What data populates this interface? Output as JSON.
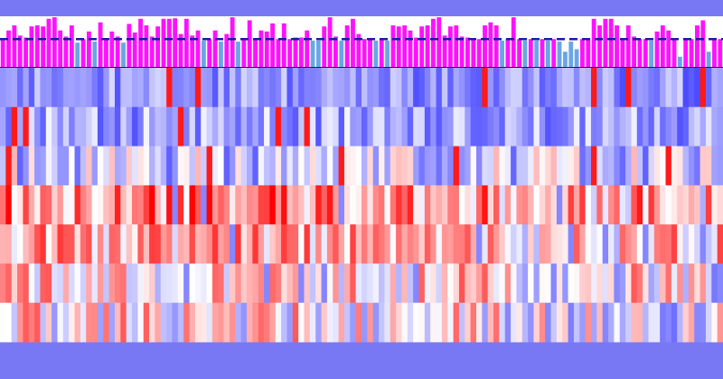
{
  "colors": {
    "background": "#7878f5",
    "panel": "#ffffff",
    "bar_above": "#ff11ff",
    "bar_below": "#6aa6e6",
    "threshold_line": "#1a1aaa",
    "heat_low": "#3636ff",
    "heat_mid": "#ffffff",
    "heat_high": "#ff0000",
    "divider": "#222222"
  },
  "chart_data": [
    {
      "type": "bar",
      "threshold": 0.55,
      "ylim": [
        0,
        1
      ],
      "values": [
        0.55,
        0.72,
        0.82,
        0.62,
        0.58,
        0.8,
        0.82,
        0.8,
        0.95,
        0.98,
        0.72,
        0.6,
        0.82,
        0.48,
        0.55,
        0.7,
        0.5,
        0.88,
        0.55,
        0.7,
        0.6,
        0.48,
        0.85,
        0.68,
        0.95,
        0.82,
        0.6,
        0.8,
        0.95,
        0.95,
        0.96,
        0.65,
        0.95,
        0.62,
        0.72,
        0.52,
        0.55,
        0.72,
        0.5,
        0.65,
        0.98,
        0.5,
        0.55,
        0.92,
        0.55,
        0.72,
        0.7,
        0.86,
        0.55,
        0.86,
        0.55,
        0.58,
        0.58,
        0.72,
        0.52,
        0.52,
        0.8,
        0.98,
        0.6,
        0.52,
        0.82,
        0.95,
        0.65,
        0.55,
        0.55,
        0.52,
        0.55,
        0.52,
        0.82,
        0.8,
        0.82,
        0.72,
        0.58,
        0.8,
        0.82,
        0.95,
        0.98,
        0.62,
        0.8,
        0.82,
        0.6,
        0.58,
        0.55,
        0.55,
        0.82,
        0.88,
        0.82,
        0.52,
        0.55,
        0.98,
        0.55,
        0.52,
        0.55,
        0.52,
        0.55,
        0.52,
        0.55,
        0.5,
        0.3,
        0.5,
        0.35,
        0.55,
        0.55,
        0.95,
        0.82,
        0.95,
        0.95,
        0.82,
        0.55,
        0.82,
        0.6,
        0.55,
        0.55,
        0.52,
        0.7,
        0.82,
        0.72,
        0.55,
        0.2,
        0.55,
        0.55,
        0.82,
        0.92,
        0.3,
        0.55,
        0.55
      ]
    },
    {
      "type": "heatmap",
      "rows": 7,
      "columns": 126,
      "vlim": [
        -1,
        1
      ]
    }
  ]
}
